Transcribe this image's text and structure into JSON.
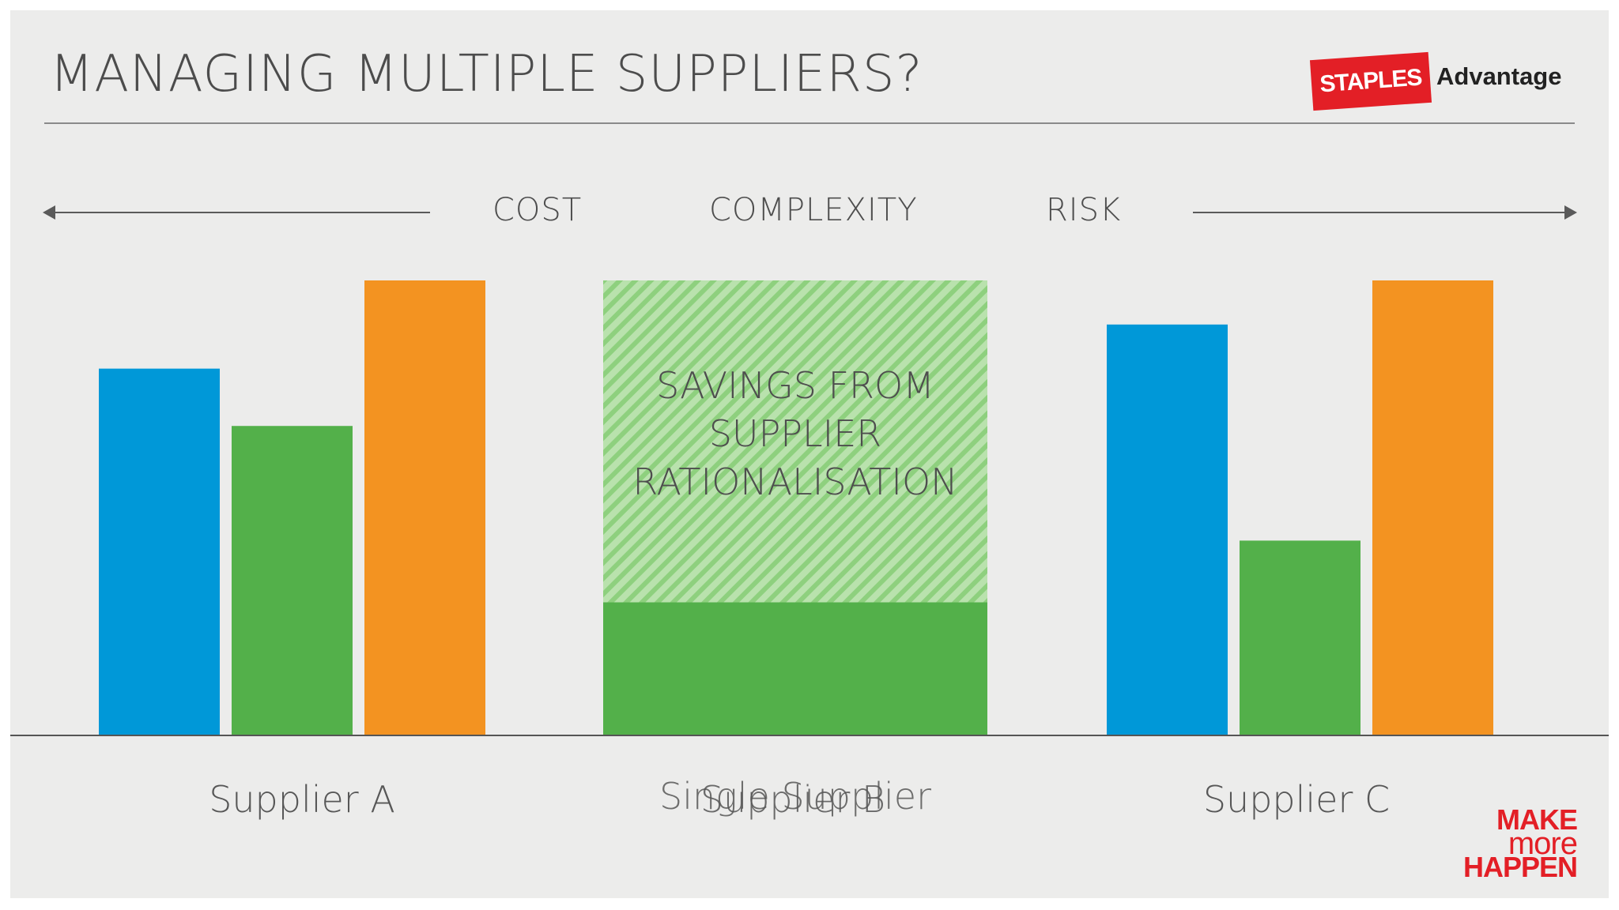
{
  "slide": {
    "title": "MANAGING MULTIPLE SUPPLIERS?",
    "logo_badge": "STAPLES",
    "logo_text": "Advantage",
    "tagline": [
      "MAKE",
      "more",
      "HAPPEN"
    ],
    "categories": [
      "COST",
      "COMPLEXITY",
      "RISK"
    ],
    "savings_label": "SAVINGS FROM\nSUPPLIER\nRATIONALISATION"
  },
  "chart_data": {
    "type": "bar",
    "groups": [
      "Supplier A",
      "Supplier B",
      "Supplier C"
    ],
    "overlay_label": "Single Supplier",
    "series": [
      {
        "name": "COST",
        "color": "#0098d8",
        "values": [
          83,
          null,
          93
        ]
      },
      {
        "name": "COMPLEXITY",
        "color": "#53b04a",
        "values": [
          70,
          30,
          44
        ]
      },
      {
        "name": "RISK",
        "color": "#f39321",
        "values": [
          103,
          null,
          103
        ]
      }
    ],
    "savings_region": {
      "from": 30,
      "to": 103,
      "color": "#8ed07e"
    },
    "ylim": [
      0,
      103
    ]
  }
}
